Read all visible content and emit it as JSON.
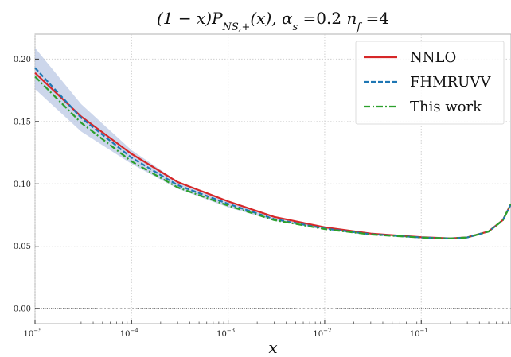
{
  "chart_data": {
    "type": "line",
    "title": "(1 − x)P_{NS,+}(x),  α_s =0.2 n_f =4",
    "title_parts": {
      "left": "(1 − x)P",
      "sub": "NS,+",
      "middle": "(x),  α",
      "sub2": "s",
      "alpha_value": " =0.2 ",
      "n": "n",
      "sub3": "f",
      "nf_value": " =4"
    },
    "xlabel": "x",
    "ylabel": "",
    "x_scale": "log",
    "xlim": [
      1e-05,
      0.85
    ],
    "ylim": [
      -0.012,
      0.22
    ],
    "grid": true,
    "legend_position": "top-right",
    "x_ticks": [
      {
        "value": 1e-05,
        "base": "10",
        "exp": "−5"
      },
      {
        "value": 0.0001,
        "base": "10",
        "exp": "−4"
      },
      {
        "value": 0.001,
        "base": "10",
        "exp": "−3"
      },
      {
        "value": 0.01,
        "base": "10",
        "exp": "−2"
      },
      {
        "value": 0.1,
        "base": "10",
        "exp": "−1"
      }
    ],
    "y_ticks": [
      {
        "value": 0.0,
        "label": "0.00"
      },
      {
        "value": 0.05,
        "label": "0.05"
      },
      {
        "value": 0.1,
        "label": "0.10"
      },
      {
        "value": 0.15,
        "label": "0.15"
      },
      {
        "value": 0.2,
        "label": "0.20"
      }
    ],
    "reference_line": {
      "y": 0.0,
      "style": "dotted"
    },
    "band": {
      "x": [
        1e-05,
        3e-05,
        0.0001,
        0.0003,
        0.001,
        0.003,
        0.01,
        0.03,
        0.1,
        0.2,
        0.3,
        0.5,
        0.7,
        0.85
      ],
      "upper": [
        0.209,
        0.164,
        0.127,
        0.102,
        0.0855,
        0.0725,
        0.0648,
        0.06,
        0.0572,
        0.0563,
        0.0572,
        0.062,
        0.071,
        0.084
      ],
      "lower": [
        0.176,
        0.142,
        0.116,
        0.0962,
        0.0812,
        0.0705,
        0.0636,
        0.0593,
        0.057,
        0.0563,
        0.0571,
        0.0619,
        0.0709,
        0.0839
      ]
    },
    "series": [
      {
        "name": "NNLO",
        "color": "#d62728",
        "dash": "solid",
        "x": [
          1e-05,
          3e-05,
          0.0001,
          0.0003,
          0.001,
          0.003,
          0.01,
          0.03,
          0.1,
          0.2,
          0.3,
          0.5,
          0.7,
          0.85
        ],
        "y": [
          0.189,
          0.154,
          0.124,
          0.1015,
          0.086,
          0.0735,
          0.0652,
          0.0602,
          0.0573,
          0.0564,
          0.0572,
          0.062,
          0.071,
          0.084
        ]
      },
      {
        "name": "FHMRUVV",
        "color": "#1f77b4",
        "dash": "dashed",
        "x": [
          1e-05,
          3e-05,
          0.0001,
          0.0003,
          0.001,
          0.003,
          0.01,
          0.03,
          0.1,
          0.2,
          0.3,
          0.5,
          0.7,
          0.85
        ],
        "y": [
          0.193,
          0.153,
          0.121,
          0.099,
          0.084,
          0.0718,
          0.0642,
          0.0597,
          0.0571,
          0.0563,
          0.0571,
          0.0619,
          0.0709,
          0.0839
        ]
      },
      {
        "name": "This work",
        "color": "#2ca02c",
        "dash": "dashdot",
        "x": [
          1e-05,
          3e-05,
          0.0001,
          0.0003,
          0.001,
          0.003,
          0.01,
          0.03,
          0.1,
          0.2,
          0.3,
          0.5,
          0.7,
          0.85
        ],
        "y": [
          0.186,
          0.149,
          0.118,
          0.0972,
          0.0826,
          0.071,
          0.0638,
          0.0595,
          0.057,
          0.0563,
          0.0571,
          0.0619,
          0.0709,
          0.0839
        ]
      }
    ],
    "band_color": "#b7c5e3"
  }
}
